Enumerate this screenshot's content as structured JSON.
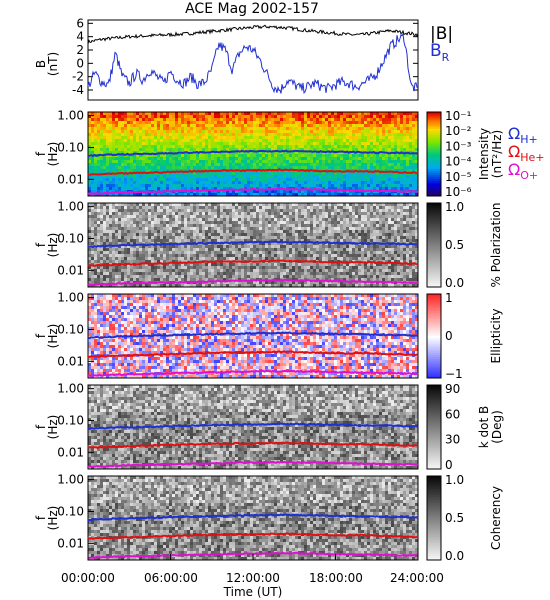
{
  "chart_data": [
    {
      "type": "line",
      "title": "ACE Mag 2002-157",
      "ylabel": "B",
      "yunit": "(nT)",
      "ylim": [
        -5.5,
        6.5
      ],
      "yticks": [
        -4,
        -2,
        0,
        2,
        4,
        6
      ],
      "xlim": [
        0,
        24
      ],
      "series": [
        {
          "name": "|B|",
          "color": "#000000",
          "x": [
            0,
            1,
            2,
            3,
            4,
            5,
            6,
            7,
            8,
            9,
            10,
            11,
            12,
            13,
            14,
            15,
            16,
            17,
            18,
            19,
            20,
            21,
            22,
            23,
            24
          ],
          "values": [
            3.2,
            3.6,
            3.8,
            4.0,
            4.1,
            4.2,
            4.3,
            4.4,
            4.6,
            4.8,
            5.0,
            5.2,
            5.4,
            5.5,
            5.4,
            5.2,
            4.9,
            4.7,
            4.5,
            4.3,
            4.3,
            4.6,
            4.9,
            4.6,
            4.3
          ]
        },
        {
          "name": "B",
          "subscript": "R",
          "color": "#1f2fd0",
          "x": [
            0,
            0.5,
            1,
            1.5,
            2,
            2.5,
            3,
            3.5,
            4,
            4.5,
            5,
            5.5,
            6,
            6.5,
            7,
            7.5,
            8,
            8.5,
            9,
            9.5,
            10,
            10.5,
            11,
            11.5,
            12,
            12.5,
            13,
            13.5,
            14,
            14.5,
            15,
            15.5,
            16,
            16.5,
            17,
            17.5,
            18,
            18.5,
            19,
            19.5,
            20,
            20.5,
            21,
            21.5,
            22,
            22.5,
            23,
            23.5,
            24
          ],
          "values": [
            -3.5,
            -1.5,
            -2.8,
            -3.2,
            1.5,
            -2.0,
            -3.0,
            -1.5,
            -2.5,
            -1.0,
            -2.0,
            -3.0,
            -1.2,
            -2.5,
            -3.0,
            -2.0,
            -3.2,
            -2.8,
            -1.0,
            2.8,
            2.0,
            -1.0,
            1.5,
            2.5,
            2.0,
            0.5,
            -1.5,
            -3.5,
            -4.0,
            -2.5,
            -3.2,
            -3.8,
            -3.5,
            -3.0,
            -3.5,
            -3.8,
            -3.2,
            -2.8,
            -3.0,
            -3.5,
            -3.0,
            -2.5,
            -1.5,
            0.5,
            2.5,
            3.5,
            4.0,
            -3.5,
            -3.8
          ]
        }
      ]
    },
    {
      "type": "heatmap",
      "ylabel": "f",
      "yunit": "(Hz)",
      "yticks": [
        "0.01",
        "0.10",
        "1.00"
      ],
      "colorbar": {
        "label": "Intensity",
        "unit": "(nT²/Hz)",
        "ticks": [
          "10⁻⁶",
          "10⁻⁵",
          "10⁻⁴",
          "10⁻³",
          "10⁻²",
          "10⁻¹"
        ],
        "palette": "rainbow"
      },
      "legend": [
        {
          "label": "Ω",
          "subscript": "H+",
          "color": "#1f2fd0"
        },
        {
          "label": "Ω",
          "subscript": "He+",
          "color": "#e01010"
        },
        {
          "label": "Ω",
          "subscript": "O+",
          "color": "#e010d0"
        }
      ]
    },
    {
      "type": "heatmap",
      "ylabel": "f",
      "yunit": "(Hz)",
      "yticks": [
        "0.01",
        "0.10",
        "1.00"
      ],
      "colorbar": {
        "label": "% Polarization",
        "unit": "",
        "ticks": [
          "0.0",
          "0.5",
          "1.0"
        ],
        "palette": "gray-rev"
      }
    },
    {
      "type": "heatmap",
      "ylabel": "f",
      "yunit": "(Hz)",
      "yticks": [
        "0.01",
        "0.10",
        "1.00"
      ],
      "colorbar": {
        "label": "Ellipticity",
        "unit": "",
        "ticks": [
          "−1",
          "0",
          "1"
        ],
        "palette": "bwr"
      }
    },
    {
      "type": "heatmap",
      "ylabel": "f",
      "yunit": "(Hz)",
      "yticks": [
        "0.01",
        "0.10",
        "1.00"
      ],
      "colorbar": {
        "label": "k dot B",
        "unit": "(Deg)",
        "ticks": [
          "0",
          "30",
          "60",
          "90"
        ],
        "palette": "gray-rev"
      }
    },
    {
      "type": "heatmap",
      "ylabel": "f",
      "yunit": "(Hz)",
      "yticks": [
        "0.01",
        "0.10",
        "1.00"
      ],
      "colorbar": {
        "label": "Coherency",
        "unit": "",
        "ticks": [
          "0.0",
          "0.5",
          "1.0"
        ],
        "palette": "gray-rev"
      }
    }
  ],
  "gyro_lines": {
    "x": [
      0,
      2,
      4,
      6,
      8,
      10,
      12,
      14,
      16,
      18,
      20,
      22,
      24
    ],
    "H": [
      0.055,
      0.06,
      0.063,
      0.066,
      0.07,
      0.073,
      0.076,
      0.078,
      0.076,
      0.073,
      0.07,
      0.068,
      0.065
    ],
    "He": [
      0.014,
      0.015,
      0.016,
      0.017,
      0.018,
      0.019,
      0.019,
      0.02,
      0.019,
      0.018,
      0.018,
      0.017,
      0.016
    ],
    "O": [
      0.0035,
      0.0038,
      0.004,
      0.0042,
      0.0044,
      0.0046,
      0.0048,
      0.0049,
      0.0048,
      0.0046,
      0.0044,
      0.0043,
      0.0041
    ]
  },
  "xaxis": {
    "label": "Time (UT)",
    "ticks": [
      "00:00:00",
      "06:00:00",
      "12:00:00",
      "18:00:00",
      "24:00:00"
    ]
  },
  "colors": {
    "h_plus": "#1f2fd0",
    "he_plus": "#e01010",
    "o_plus": "#e010d0"
  }
}
